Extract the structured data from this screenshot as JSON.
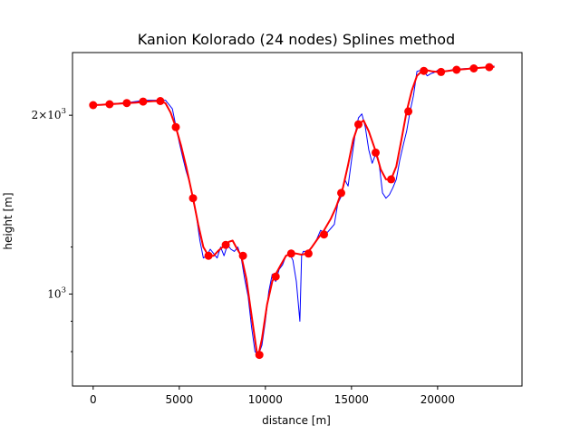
{
  "chart_data": {
    "type": "line",
    "title": "Kanion Kolorado (24 nodes) Splines method",
    "xlabel": "distance [m]",
    "ylabel": "height [m]",
    "xlim": [
      -1200,
      24900
    ],
    "ylim": [
      700,
      2550
    ],
    "y_scale": "log",
    "grid": false,
    "x_ticks": [
      {
        "value": 0,
        "label": "0"
      },
      {
        "value": 5000,
        "label": "5000"
      },
      {
        "value": 10000,
        "label": "10000"
      },
      {
        "value": 15000,
        "label": "15000"
      },
      {
        "value": 20000,
        "label": "20000"
      }
    ],
    "y_ticks_major": [
      {
        "value": 1000,
        "base": "10",
        "exp": "3",
        "mantissa": ""
      },
      {
        "value": 2000,
        "base": "10",
        "exp": "3",
        "mantissa": "2"
      }
    ],
    "y_ticks_minor": [
      800,
      900,
      1200
    ],
    "series": [
      {
        "role": "original profile",
        "color": "#0000ff",
        "x": [
          0,
          1000,
          2000,
          3000,
          3800,
          4200,
          4600,
          4800,
          5000,
          5200,
          5400,
          5600,
          5800,
          6000,
          6200,
          6400,
          6600,
          6800,
          7000,
          7200,
          7400,
          7600,
          7800,
          8000,
          8200,
          8400,
          8600,
          8800,
          9000,
          9200,
          9400,
          9600,
          9800,
          10000,
          10200,
          10400,
          10600,
          10800,
          11000,
          11200,
          11400,
          11600,
          11800,
          12000,
          12100,
          12200,
          12400,
          12600,
          12800,
          13000,
          13200,
          13400,
          13600,
          13800,
          14000,
          14200,
          14400,
          14600,
          14800,
          15000,
          15200,
          15400,
          15600,
          15800,
          16000,
          16200,
          16400,
          16600,
          16800,
          17000,
          17200,
          17400,
          17600,
          17800,
          18000,
          18200,
          18400,
          18600,
          18800,
          19000,
          19200,
          19400,
          19600,
          19800,
          20000,
          20400,
          21000,
          22000,
          23000,
          23300
        ],
        "y": [
          2080,
          2090,
          2100,
          2120,
          2120,
          2120,
          2050,
          1920,
          1800,
          1700,
          1610,
          1540,
          1440,
          1350,
          1230,
          1150,
          1160,
          1190,
          1170,
          1150,
          1200,
          1160,
          1210,
          1190,
          1180,
          1200,
          1150,
          1060,
          990,
          880,
          800,
          790,
          820,
          900,
          1010,
          1080,
          1050,
          1100,
          1120,
          1160,
          1170,
          1140,
          1050,
          900,
          1160,
          1180,
          1180,
          1190,
          1210,
          1240,
          1280,
          1270,
          1270,
          1290,
          1310,
          1420,
          1460,
          1560,
          1520,
          1680,
          1850,
          1980,
          2010,
          1910,
          1750,
          1660,
          1720,
          1660,
          1480,
          1450,
          1470,
          1510,
          1560,
          1680,
          1780,
          1880,
          2030,
          2160,
          2370,
          2380,
          2370,
          2330,
          2350,
          2360,
          2380,
          2370,
          2390,
          2400,
          2410,
          2420
        ]
      },
      {
        "role": "spline interpolation",
        "color": "#ff0000",
        "x": [
          0,
          500,
          1000,
          1500,
          2000,
          2500,
          3000,
          3500,
          3900,
          4200,
          4500,
          4800,
          5100,
          5400,
          5800,
          6100,
          6400,
          6700,
          7000,
          7300,
          7600,
          7900,
          8100,
          8300,
          8600,
          8900,
          9200,
          9500,
          9600,
          9800,
          10100,
          10400,
          10600,
          10900,
          11200,
          11500,
          11800,
          12100,
          12400,
          12700,
          13000,
          13400,
          13800,
          14100,
          14500,
          14800,
          15100,
          15400,
          15700,
          16000,
          16400,
          16700,
          17000,
          17300,
          17600,
          17900,
          18200,
          18500,
          18800,
          19100,
          19400,
          19700,
          20000,
          20200,
          20600,
          21100,
          21600,
          22000,
          22500,
          23000,
          23300
        ],
        "y": [
          2080,
          2083,
          2088,
          2092,
          2097,
          2100,
          2107,
          2112,
          2113,
          2095,
          2020,
          1910,
          1780,
          1640,
          1450,
          1310,
          1200,
          1160,
          1160,
          1185,
          1205,
          1225,
          1230,
          1200,
          1160,
          1060,
          920,
          800,
          790,
          840,
          960,
          1050,
          1080,
          1120,
          1160,
          1170,
          1170,
          1165,
          1170,
          1200,
          1235,
          1280,
          1340,
          1400,
          1510,
          1650,
          1820,
          1930,
          1960,
          1880,
          1740,
          1620,
          1560,
          1560,
          1640,
          1820,
          2030,
          2200,
          2330,
          2375,
          2380,
          2370,
          2365,
          2368,
          2375,
          2385,
          2392,
          2398,
          2405,
          2410,
          2412
        ]
      }
    ],
    "nodes": {
      "color": "#ff0000",
      "x": [
        0,
        950,
        1950,
        2900,
        3900,
        4800,
        5800,
        6700,
        7700,
        8700,
        9650,
        10600,
        11500,
        12500,
        13400,
        14400,
        15400,
        16400,
        17300,
        18300,
        19200,
        20200,
        21100,
        22100,
        23000
      ],
      "y": [
        2080,
        2087,
        2097,
        2109,
        2113,
        1910,
        1450,
        1160,
        1210,
        1160,
        790,
        1070,
        1170,
        1170,
        1260,
        1480,
        1930,
        1730,
        1560,
        2030,
        2375,
        2365,
        2385,
        2398,
        2410
      ]
    }
  }
}
